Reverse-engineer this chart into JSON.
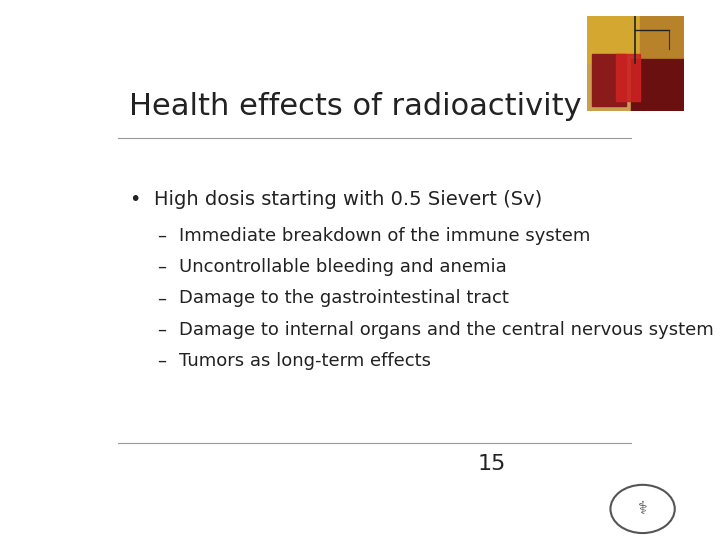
{
  "title": "Health effects of radioactivity",
  "title_fontsize": 22,
  "title_color": "#222222",
  "background_color": "#ffffff",
  "bullet_text": "High dosis starting with 0.5 Sievert (Sv)",
  "bullet_fontsize": 14,
  "sub_bullets": [
    "Immediate breakdown of the immune system",
    "Uncontrollable bleeding and anemia",
    "Damage to the gastrointestinal tract",
    "Damage to internal organs and the central nervous system",
    "Tumors as long-term effects"
  ],
  "sub_bullet_fontsize": 13,
  "text_color": "#222222",
  "line_color": "#999999",
  "page_number": "15",
  "page_number_fontsize": 16
}
